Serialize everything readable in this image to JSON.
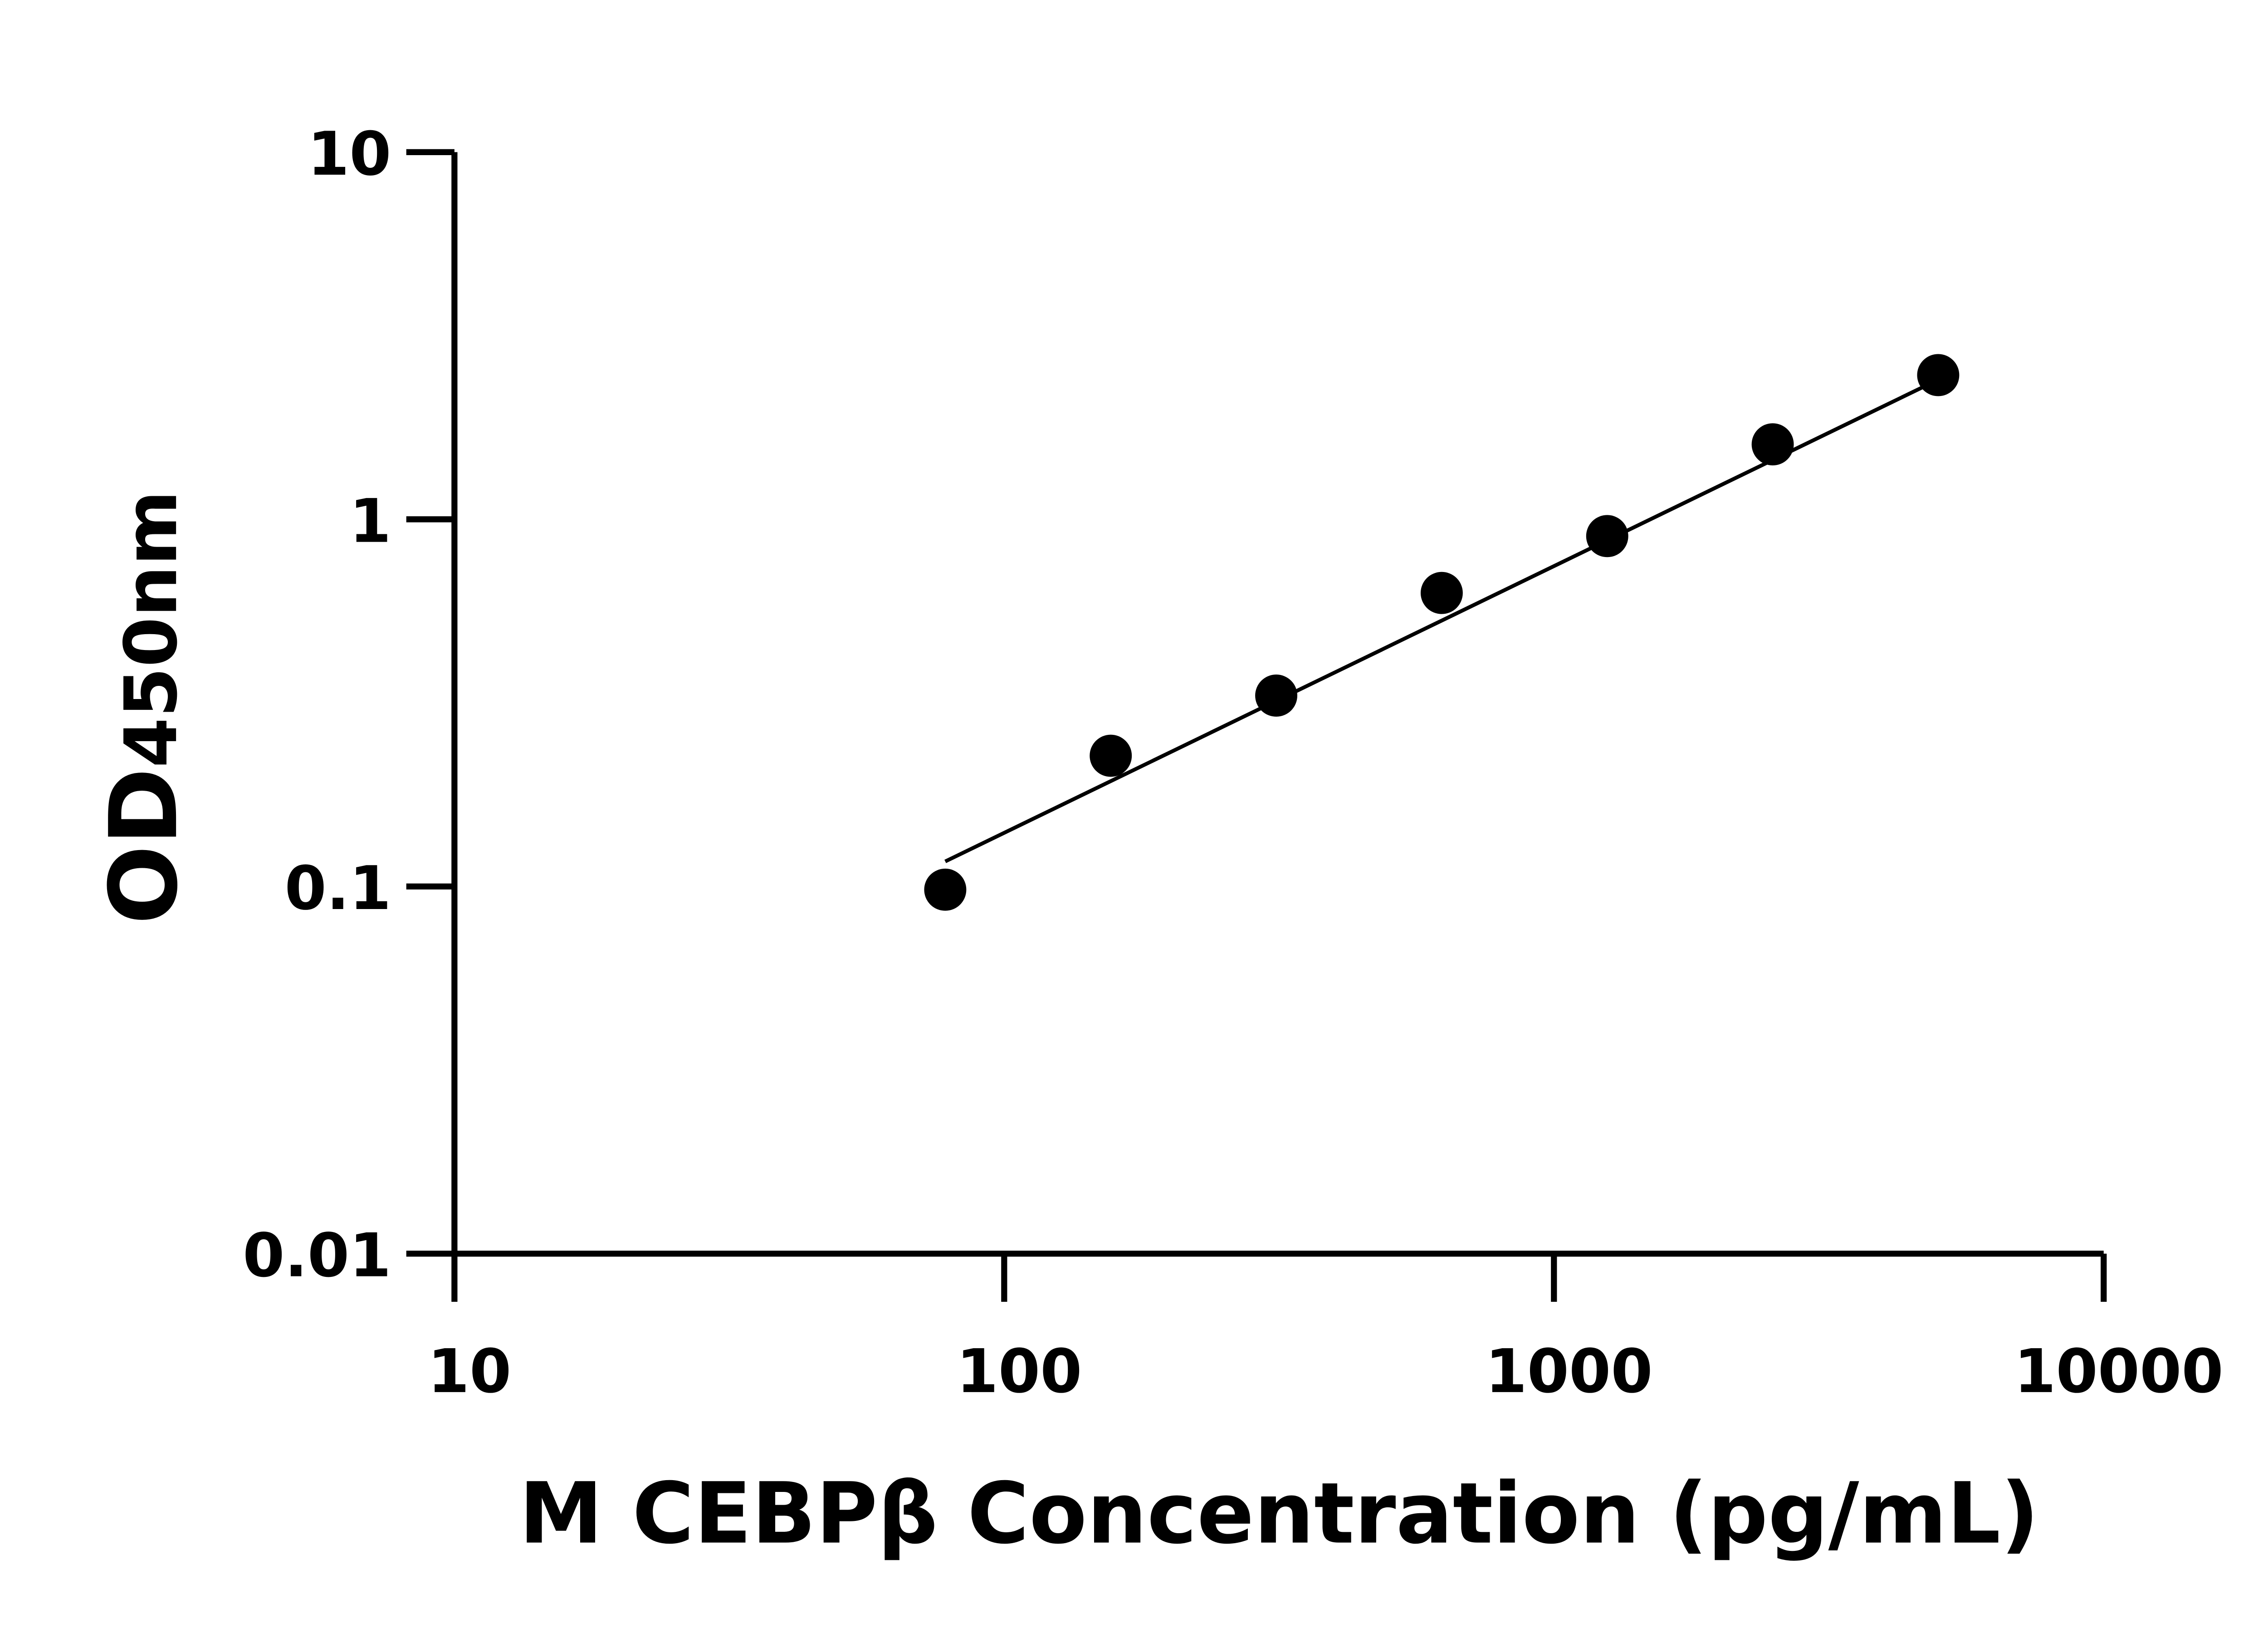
{
  "chart_data": {
    "type": "scatter",
    "title": "",
    "xlabel": "M CEBPβ Concentration (pg/mL)",
    "ylabel_main": "OD",
    "ylabel_sub": "450nm",
    "x_scale": "log",
    "y_scale": "log",
    "xlim": [
      10,
      10000
    ],
    "ylim": [
      0.01,
      10
    ],
    "x_ticks": [
      "10",
      "100",
      "1000",
      "10000"
    ],
    "y_ticks": [
      "0.01",
      "0.1",
      "1",
      "10"
    ],
    "grid": false,
    "points": {
      "x": [
        78.125,
        156.25,
        312.5,
        625,
        1250,
        2500,
        5000
      ],
      "y": [
        0.098,
        0.227,
        0.331,
        0.63,
        0.9,
        1.6,
        2.47
      ]
    },
    "fit_line": {
      "x": [
        78.125,
        5000
      ],
      "y": [
        0.117,
        2.4
      ]
    },
    "colors": {
      "points": "#000000",
      "line": "#000000",
      "axes": "#000000"
    }
  }
}
